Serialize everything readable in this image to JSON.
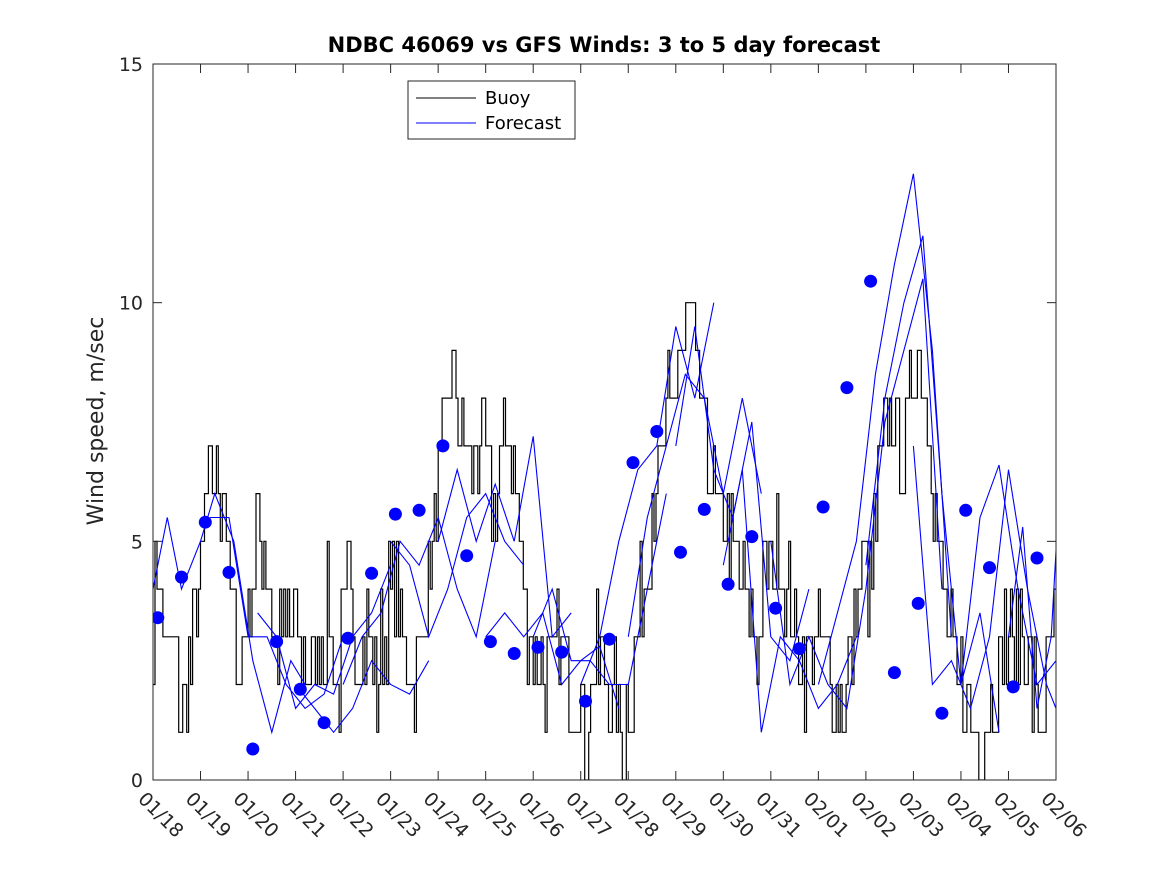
{
  "chart_data": {
    "type": "line",
    "title": "NDBC 46069 vs GFS Winds: 3 to 5 day forecast",
    "xlabel": "",
    "ylabel": "Wind speed, m/sec",
    "xlim": [
      0,
      19
    ],
    "ylim": [
      0,
      15
    ],
    "categories": [
      "01/18",
      "01/19",
      "01/20",
      "01/21",
      "01/22",
      "01/23",
      "01/24",
      "01/25",
      "01/26",
      "01/27",
      "01/28",
      "01/29",
      "01/30",
      "01/31",
      "02/01",
      "02/02",
      "02/03",
      "02/04",
      "02/05",
      "02/06"
    ],
    "yticks": [
      0,
      5,
      10,
      15
    ],
    "legend": {
      "position": "top-left",
      "entries": [
        "Buoy",
        "Forecast"
      ]
    },
    "colors": {
      "buoy": "#000000",
      "forecast": "#0000ff",
      "markers": "#0000ff"
    },
    "series": [
      {
        "name": "Buoy",
        "description": "hourly observed wind speed, integer m/s",
        "anchors": {
          "x": [
            0,
            0.1,
            0.25,
            0.45,
            0.6,
            0.8,
            1.0,
            1.1,
            1.3,
            1.5,
            1.6,
            1.8,
            2.0,
            2.2,
            2.4,
            2.6,
            2.9,
            3.1,
            3.3,
            3.5,
            3.7,
            3.9,
            4.1,
            4.3,
            4.5,
            4.7,
            4.9,
            5.1,
            5.3,
            5.5,
            5.7,
            5.9,
            6.1,
            6.3,
            6.5,
            6.7,
            6.9,
            7.1,
            7.3,
            7.5,
            7.7,
            7.9,
            8.1,
            8.3,
            8.5,
            8.7,
            8.9,
            9.1,
            9.3,
            9.5,
            9.7,
            9.9,
            10.1,
            10.3,
            10.5,
            10.7,
            10.9,
            11.1,
            11.3,
            11.5,
            11.7,
            11.9,
            12.1,
            12.3,
            12.5,
            12.7,
            12.9,
            13.1,
            13.3,
            13.5,
            13.7,
            13.9,
            14.1,
            14.3,
            14.5,
            14.7,
            14.9,
            15.1,
            15.3,
            15.5,
            15.7,
            15.9,
            16.1,
            16.3,
            16.5,
            16.7,
            16.9,
            17.1,
            17.3,
            17.5,
            17.7,
            17.9,
            18.1,
            18.3,
            18.5,
            18.7,
            18.9,
            19.0
          ],
          "y": [
            3,
            4.5,
            3,
            2.5,
            1.5,
            2.5,
            4,
            5.5,
            6.5,
            6,
            4,
            2,
            3.5,
            5.5,
            4.5,
            2.5,
            3.5,
            2.5,
            2,
            3,
            3.5,
            2,
            4,
            3,
            3,
            2,
            3.5,
            4,
            3,
            2,
            3.5,
            5,
            7,
            8.5,
            7.5,
            6,
            7.5,
            6,
            6.5,
            7.5,
            5,
            3,
            2.5,
            2,
            3,
            2.5,
            2,
            1,
            2.5,
            2,
            1.5,
            1,
            2,
            4,
            6,
            6.5,
            8,
            9,
            9.5,
            8,
            6.5,
            5.5,
            5,
            4,
            3.5,
            3,
            4,
            5,
            4,
            3,
            2.5,
            3,
            3,
            2,
            1.5,
            3,
            4.5,
            4,
            6.5,
            8,
            6.5,
            7.5,
            9.5,
            8,
            5,
            3,
            2,
            2,
            1,
            1,
            2,
            3,
            2.5,
            3.5,
            2,
            1.5,
            2.5,
            3
          ]
        }
      },
      {
        "name": "Forecast",
        "description": "model runs (several overlapping traces)",
        "runs": [
          {
            "x": [
              0,
              0.3,
              0.6,
              1.0,
              1.3,
              1.7,
              2.1,
              2.5,
              2.9,
              3.2
            ],
            "y": [
              4,
              5.5,
              4,
              5,
              6,
              5,
              2.5,
              1,
              2.5,
              2
            ]
          },
          {
            "x": [
              1.2,
              1.6,
              2.0,
              2.4,
              2.8,
              3.2,
              3.6,
              4.0
            ],
            "y": [
              5.5,
              5.5,
              3,
              3,
              2,
              1.5,
              1.8,
              3
            ]
          },
          {
            "x": [
              2.2,
              2.6,
              3.0,
              3.4,
              3.8,
              4.2,
              4.6,
              5.0
            ],
            "y": [
              3.5,
              3,
              1.5,
              2,
              1.8,
              3,
              3.5,
              4.5
            ]
          },
          {
            "x": [
              3.0,
              3.4,
              3.8,
              4.2,
              4.6,
              5.0,
              5.4,
              5.8
            ],
            "y": [
              2,
              1.5,
              1,
              1.5,
              2.5,
              2,
              1.8,
              2.5
            ]
          },
          {
            "x": [
              4.0,
              4.4,
              4.8,
              5.2,
              5.6,
              6.0,
              6.4,
              6.8,
              7.2
            ],
            "y": [
              2,
              3,
              3.5,
              5,
              4.5,
              5.5,
              4,
              3,
              5
            ]
          },
          {
            "x": [
              5.0,
              5.4,
              5.8,
              6.2,
              6.6,
              7.0,
              7.4,
              7.8
            ],
            "y": [
              5,
              4.5,
              3,
              4,
              5.5,
              6,
              5,
              4.5
            ]
          },
          {
            "x": [
              6.0,
              6.4,
              6.8,
              7.2,
              7.6,
              8.0,
              8.4,
              8.8
            ],
            "y": [
              5,
              6.5,
              5,
              6.2,
              5,
              7.2,
              3,
              3.5
            ]
          },
          {
            "x": [
              7.0,
              7.4,
              7.8,
              8.2,
              8.6,
              9.0,
              9.4,
              9.8
            ],
            "y": [
              3,
              3.5,
              3,
              3.5,
              2,
              2.5,
              2.8,
              1.5
            ]
          },
          {
            "x": [
              8.0,
              8.4,
              8.8,
              9.2,
              9.6,
              10.0,
              10.4,
              10.8
            ],
            "y": [
              3,
              4,
              2.5,
              2.5,
              2,
              2,
              4,
              6
            ]
          },
          {
            "x": [
              9.0,
              9.4,
              9.8,
              10.2,
              10.6,
              11.0,
              11.4,
              11.8
            ],
            "y": [
              2,
              3,
              5,
              6.5,
              7,
              9.5,
              8,
              10
            ]
          },
          {
            "x": [
              10.0,
              10.4,
              10.8,
              11.2,
              11.6,
              12.0,
              12.4,
              12.8
            ],
            "y": [
              3,
              5.5,
              7,
              8.5,
              8,
              6,
              8,
              6
            ]
          },
          {
            "x": [
              11.0,
              11.4,
              11.8,
              12.2,
              12.6,
              13.0,
              13.4,
              13.8
            ],
            "y": [
              7,
              9.5,
              6.5,
              5.5,
              7.5,
              3,
              2.5,
              4
            ]
          },
          {
            "x": [
              12.0,
              12.4,
              12.8,
              13.2,
              13.6,
              14.0,
              14.4,
              14.8
            ],
            "y": [
              4.5,
              6.5,
              1,
              3,
              2.5,
              1.5,
              2,
              3
            ]
          },
          {
            "x": [
              13.0,
              13.4,
              13.8,
              14.2,
              14.6,
              15.0,
              15.4,
              15.8,
              16.2,
              16.6
            ],
            "y": [
              5,
              2,
              3,
              2,
              1.5,
              4,
              7.5,
              9,
              10.5,
              4
            ]
          },
          {
            "x": [
              14.0,
              14.4,
              14.8,
              15.2,
              15.6,
              16.0,
              16.4,
              16.8
            ],
            "y": [
              2,
              3.5,
              5,
              8.5,
              10.8,
              12.7,
              9,
              3
            ]
          },
          {
            "x": [
              15.0,
              15.4,
              15.8,
              16.2,
              16.6,
              17.0,
              17.4,
              17.8
            ],
            "y": [
              4.5,
              8,
              10,
              11.4,
              6,
              2,
              3.5,
              1
            ]
          },
          {
            "x": [
              16.0,
              16.4,
              16.8,
              17.2,
              17.6,
              18.0,
              18.4,
              18.8,
              19.0
            ],
            "y": [
              7,
              2,
              2.5,
              1.5,
              3,
              6.5,
              4,
              2,
              1.5
            ]
          },
          {
            "x": [
              17.0,
              17.4,
              17.8,
              18.2,
              18.6,
              19.0
            ],
            "y": [
              2,
              5.5,
              6.6,
              4,
              2,
              2.5
            ]
          },
          {
            "x": [
              18.0,
              18.3,
              18.6,
              18.9,
              19.0
            ],
            "y": [
              3,
              5.3,
              1.5,
              3,
              4.8
            ]
          }
        ]
      },
      {
        "name": "Forecast markers",
        "x": [
          0.1,
          0.6,
          1.1,
          1.6,
          2.1,
          2.6,
          3.1,
          3.6,
          4.1,
          4.6,
          5.1,
          5.6,
          6.1,
          6.6,
          7.1,
          7.6,
          8.1,
          8.6,
          9.1,
          9.6,
          10.1,
          10.6,
          11.1,
          11.6,
          12.1,
          12.6,
          13.1,
          13.6,
          14.1,
          14.6,
          15.1,
          15.6,
          16.1,
          16.6,
          17.1,
          17.6,
          18.1,
          18.6
        ],
        "y": [
          3.4,
          4.25,
          5.4,
          4.35,
          0.65,
          2.9,
          1.9,
          1.2,
          2.97,
          4.33,
          5.57,
          5.65,
          7.0,
          4.7,
          2.9,
          2.65,
          2.78,
          2.68,
          1.65,
          2.95,
          6.65,
          7.3,
          4.77,
          5.67,
          4.1,
          5.1,
          3.6,
          2.75,
          5.72,
          8.22,
          10.45,
          2.25,
          3.7,
          1.4,
          5.65,
          4.45,
          1.95,
          4.65
        ]
      }
    ]
  }
}
